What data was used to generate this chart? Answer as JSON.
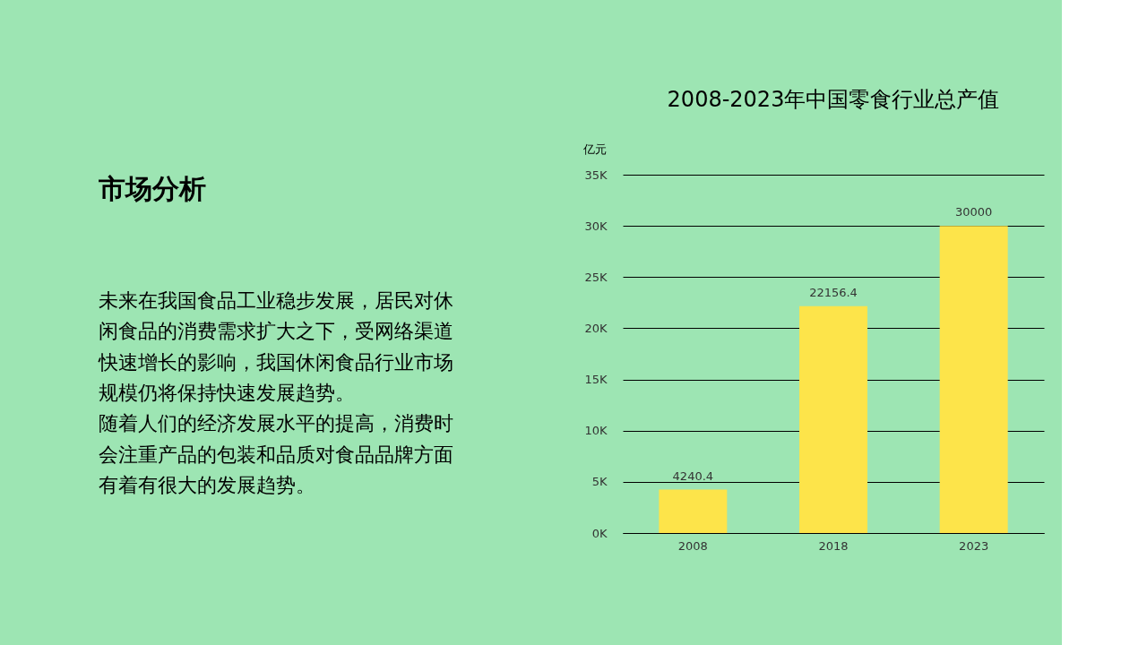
{
  "chart_data": {
    "type": "bar",
    "title": "2008-2023年中国零食行业总产值",
    "ylabel": "亿元",
    "categories": [
      "2008",
      "2018",
      "2023"
    ],
    "values": [
      4240.4,
      22156.4,
      30000
    ],
    "color": "#fde44a",
    "ylim": [
      0,
      35000
    ],
    "yticks": [
      {
        "value": 0,
        "label": "0K"
      },
      {
        "value": 5000,
        "label": "5K"
      },
      {
        "value": 10000,
        "label": "10K"
      },
      {
        "value": 15000,
        "label": "15K"
      },
      {
        "value": 20000,
        "label": "20K"
      },
      {
        "value": 25000,
        "label": "25K"
      },
      {
        "value": 30000,
        "label": "30K"
      },
      {
        "value": 35000,
        "label": "35K"
      }
    ],
    "grid": "y",
    "data_labels": true,
    "annotations": [
      "市场分析",
      "未来在我国食品工业稳步发展，居民对休闲食品的消费需求扩大之下，受网络渠道快速增长的影响，我国休闲食品行业市场规模仍将保持快速发展趋势。",
      "随着人们的经济发展水平的提高，消费时会注重产品的包装和品质对食品品牌方面有着有很大的发展趋势。"
    ]
  }
}
